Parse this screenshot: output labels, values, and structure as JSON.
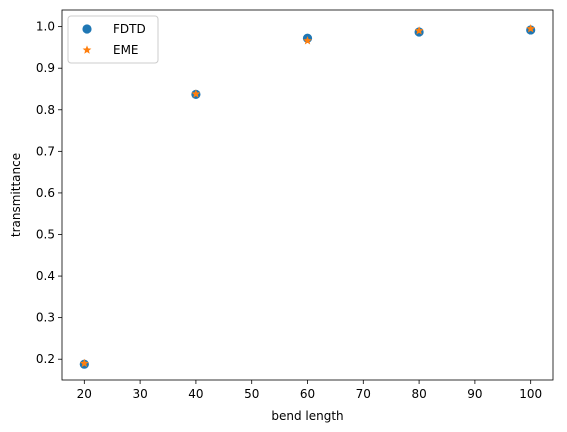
{
  "chart_data": {
    "type": "scatter",
    "title": "",
    "xlabel": "bend length",
    "ylabel": "transmittance",
    "xlim": [
      16,
      104
    ],
    "ylim": [
      0.15,
      1.04
    ],
    "xticks": [
      20,
      30,
      40,
      50,
      60,
      70,
      80,
      90,
      100
    ],
    "yticks": [
      0.2,
      0.3,
      0.4,
      0.5,
      0.6,
      0.7,
      0.8,
      0.9,
      1.0
    ],
    "ytick_labels": [
      "0.2",
      "0.3",
      "0.4",
      "0.5",
      "0.6",
      "0.7",
      "0.8",
      "0.9",
      "1.0"
    ],
    "grid": false,
    "legend_position": "top-left",
    "series": [
      {
        "name": "FDTD",
        "marker": "circle",
        "color": "#1f77b4",
        "x": [
          20,
          40,
          60,
          80,
          100
        ],
        "y": [
          0.188,
          0.837,
          0.972,
          0.987,
          0.992
        ]
      },
      {
        "name": "EME",
        "marker": "star",
        "color": "#ff7f0e",
        "x": [
          20,
          40,
          60,
          80,
          100
        ],
        "y": [
          0.19,
          0.838,
          0.966,
          0.99,
          0.995
        ]
      }
    ]
  }
}
